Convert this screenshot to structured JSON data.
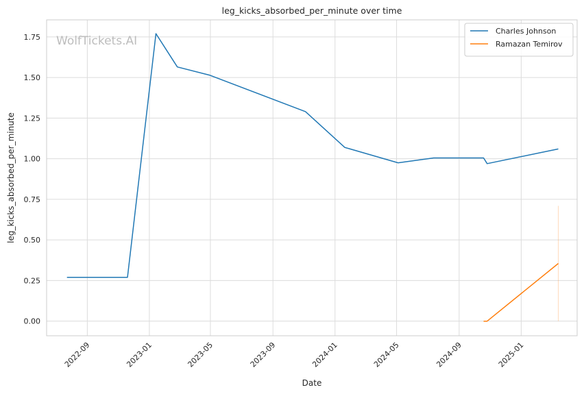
{
  "chart_data": {
    "type": "line",
    "title": "leg_kicks_absorbed_per_minute over time",
    "xlabel": "Date",
    "ylabel": "leg_kicks_absorbed_per_minute",
    "watermark": "WolfTickets.AI",
    "grid": true,
    "legend_position": "top-right",
    "xlim": [
      "2022-06-13",
      "2025-04-21"
    ],
    "ylim": [
      -0.09,
      1.855
    ],
    "x_ticks": [
      "2022-09-01",
      "2023-01-01",
      "2023-05-01",
      "2023-09-01",
      "2024-01-01",
      "2024-05-01",
      "2024-09-01",
      "2025-01-01"
    ],
    "x_tick_labels": [
      "2022-09",
      "2023-01",
      "2023-05",
      "2023-09",
      "2024-01",
      "2024-05",
      "2024-09",
      "2025-01"
    ],
    "y_ticks": [
      0.0,
      0.25,
      0.5,
      0.75,
      1.0,
      1.25,
      1.5,
      1.75
    ],
    "y_tick_labels": [
      "0.00",
      "0.25",
      "0.50",
      "0.75",
      "1.00",
      "1.25",
      "1.50",
      "1.75"
    ],
    "series": [
      {
        "name": "Charles Johnson",
        "color": "#1f77b4",
        "x": [
          "2022-07-23",
          "2022-11-19",
          "2023-01-14",
          "2023-02-25",
          "2023-04-29",
          "2023-11-04",
          "2024-01-20",
          "2024-05-04",
          "2024-07-13",
          "2024-10-19",
          "2024-10-26",
          "2025-03-15"
        ],
        "y": [
          0.27,
          0.27,
          1.77,
          1.565,
          1.515,
          1.29,
          1.07,
          0.975,
          1.005,
          1.005,
          0.97,
          1.06
        ]
      },
      {
        "name": "Ramazan Temirov",
        "color": "#ff7f0e",
        "x": [
          "2024-10-19",
          "2024-10-26",
          "2025-03-15"
        ],
        "y": [
          0.0,
          0.0,
          0.355
        ]
      }
    ],
    "confidence_band": {
      "series": "Ramazan Temirov",
      "x": "2025-03-15",
      "y_low": 0.0,
      "y_high": 0.71
    }
  }
}
